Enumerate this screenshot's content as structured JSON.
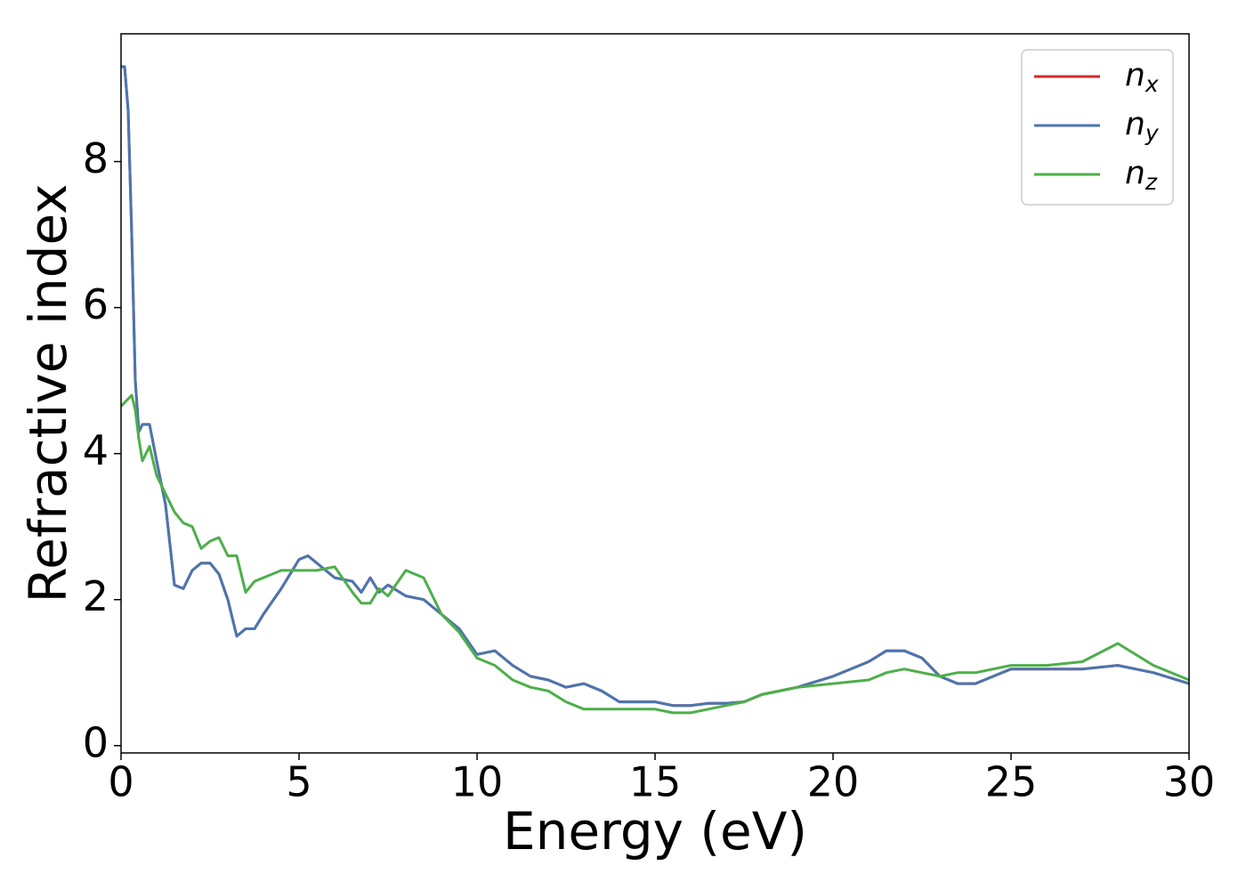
{
  "chart_data": {
    "type": "line",
    "xlabel": "Energy (eV)",
    "ylabel": "Refractive index",
    "x": [
      0,
      0.1,
      0.2,
      0.3,
      0.4,
      0.5,
      0.6,
      0.8,
      1.0,
      1.25,
      1.5,
      1.75,
      2,
      2.25,
      2.5,
      2.75,
      3,
      3.25,
      3.5,
      3.75,
      4,
      4.5,
      5,
      5.25,
      5.5,
      6,
      6.5,
      6.75,
      7,
      7.25,
      7.5,
      8,
      8.5,
      9,
      9.5,
      10,
      10.5,
      11,
      11.5,
      12,
      12.5,
      13,
      13.5,
      14,
      14.5,
      15,
      15.5,
      16,
      16.5,
      17,
      17.5,
      18,
      19,
      20,
      21,
      21.5,
      22,
      22.5,
      23,
      23.5,
      24,
      25,
      26,
      27,
      28,
      29,
      30
    ],
    "series": [
      {
        "name": "nx",
        "color": "#d62728",
        "values": [
          9.3,
          9.3,
          8.7,
          7.0,
          5.0,
          4.3,
          4.4,
          4.4,
          3.9,
          3.3,
          2.2,
          2.15,
          2.4,
          2.5,
          2.5,
          2.35,
          2.0,
          1.5,
          1.6,
          1.6,
          1.8,
          2.15,
          2.55,
          2.6,
          2.5,
          2.3,
          2.25,
          2.1,
          2.3,
          2.1,
          2.2,
          2.05,
          2.0,
          1.8,
          1.6,
          1.25,
          1.3,
          1.1,
          0.95,
          0.9,
          0.8,
          0.85,
          0.75,
          0.6,
          0.6,
          0.6,
          0.55,
          0.55,
          0.58,
          0.58,
          0.6,
          0.7,
          0.8,
          0.95,
          1.15,
          1.3,
          1.3,
          1.2,
          0.95,
          0.85,
          0.85,
          1.05,
          1.05,
          1.05,
          1.1,
          1.0,
          0.85
        ]
      },
      {
        "name": "ny",
        "color": "#4a76b0",
        "values": [
          9.3,
          9.3,
          8.7,
          7.0,
          5.0,
          4.3,
          4.4,
          4.4,
          3.9,
          3.3,
          2.2,
          2.15,
          2.4,
          2.5,
          2.5,
          2.35,
          2.0,
          1.5,
          1.6,
          1.6,
          1.8,
          2.15,
          2.55,
          2.6,
          2.5,
          2.3,
          2.25,
          2.1,
          2.3,
          2.1,
          2.2,
          2.05,
          2.0,
          1.8,
          1.6,
          1.25,
          1.3,
          1.1,
          0.95,
          0.9,
          0.8,
          0.85,
          0.75,
          0.6,
          0.6,
          0.6,
          0.55,
          0.55,
          0.58,
          0.58,
          0.6,
          0.7,
          0.8,
          0.95,
          1.15,
          1.3,
          1.3,
          1.2,
          0.95,
          0.85,
          0.85,
          1.05,
          1.05,
          1.05,
          1.1,
          1.0,
          0.85
        ]
      },
      {
        "name": "nz",
        "color": "#4daf4a",
        "values": [
          4.65,
          4.7,
          4.75,
          4.8,
          4.6,
          4.2,
          3.9,
          4.1,
          3.7,
          3.45,
          3.2,
          3.05,
          3.0,
          2.7,
          2.8,
          2.85,
          2.6,
          2.6,
          2.1,
          2.25,
          2.3,
          2.4,
          2.4,
          2.4,
          2.4,
          2.45,
          2.1,
          1.95,
          1.95,
          2.15,
          2.05,
          2.4,
          2.3,
          1.8,
          1.55,
          1.2,
          1.1,
          0.9,
          0.8,
          0.75,
          0.6,
          0.5,
          0.5,
          0.5,
          0.5,
          0.5,
          0.45,
          0.45,
          0.5,
          0.55,
          0.6,
          0.7,
          0.8,
          0.85,
          0.9,
          1.0,
          1.05,
          1.0,
          0.95,
          1.0,
          1.0,
          1.1,
          1.1,
          1.15,
          1.4,
          1.1,
          0.9
        ]
      }
    ],
    "xlim": [
      0,
      30
    ],
    "xticks": [
      0,
      5,
      10,
      15,
      20,
      25,
      30
    ],
    "ylim": [
      -0.1,
      9.75
    ],
    "yticks": [
      0,
      2,
      4,
      6,
      8
    ],
    "grid": false,
    "legend": "upper right"
  }
}
